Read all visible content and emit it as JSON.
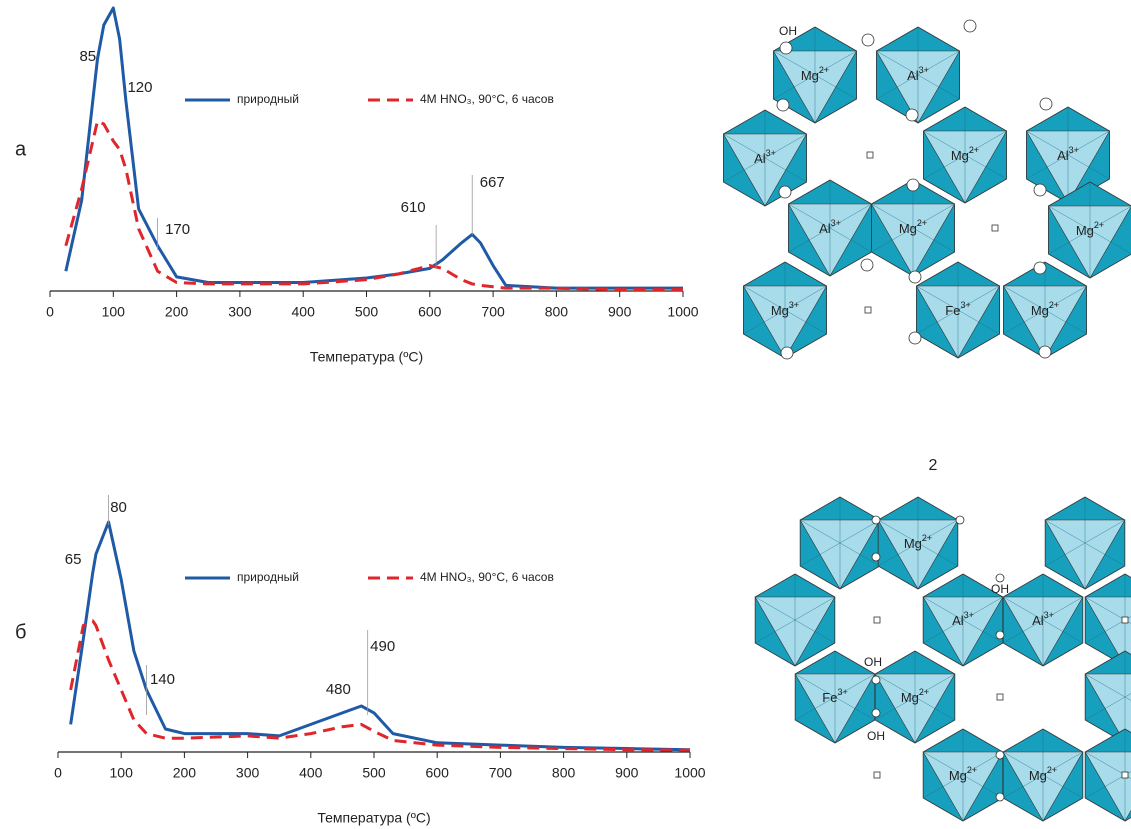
{
  "chart_data": [
    {
      "type": "line",
      "panel_label": "а",
      "xlabel": "Температура (ºС)",
      "xlim": [
        0,
        1000
      ],
      "xticks": [
        0,
        100,
        200,
        300,
        400,
        500,
        600,
        700,
        800,
        900,
        1000
      ],
      "ylim": [
        0,
        100
      ],
      "legend": "top",
      "x": [
        25,
        50,
        75,
        85,
        100,
        110,
        120,
        140,
        170,
        200,
        250,
        300,
        400,
        500,
        550,
        600,
        620,
        650,
        667,
        680,
        700,
        720,
        800,
        900,
        1000
      ],
      "series": [
        {
          "name": "природный",
          "color": "#1f5aa6",
          "dash": "solid",
          "values": [
            7,
            32,
            82,
            94,
            100,
            89,
            67,
            29,
            16,
            5,
            3,
            3,
            3,
            4.6,
            6,
            8,
            11,
            17,
            20,
            17,
            9,
            2,
            1,
            1,
            1
          ]
        },
        {
          "name": "4M HNO₃, 90°C, 6 часов",
          "color": "#e0262b",
          "dash": "dashed",
          "values": [
            16,
            36,
            60,
            59,
            53,
            50,
            43,
            22,
            7,
            3,
            2.5,
            2.5,
            2.5,
            4,
            6,
            9,
            8,
            4,
            2.5,
            2,
            1.5,
            1,
            1,
            0.5,
            0.5
          ]
        }
      ],
      "peak_labels": [
        85,
        120,
        170,
        610,
        667
      ]
    },
    {
      "type": "line",
      "panel_label": "б",
      "xlabel": "Температура (ºС)",
      "xlim": [
        0,
        1000
      ],
      "xticks": [
        0,
        100,
        200,
        300,
        400,
        500,
        600,
        700,
        800,
        900,
        1000
      ],
      "ylim": [
        0,
        100
      ],
      "legend": "top",
      "x": [
        20,
        40,
        55,
        60,
        80,
        100,
        120,
        140,
        170,
        200,
        300,
        350,
        400,
        450,
        480,
        500,
        530,
        600,
        700,
        800,
        900,
        1000
      ],
      "series": [
        {
          "name": "природный",
          "color": "#1f5aa6",
          "dash": "solid",
          "values": [
            12,
            49,
            78,
            86,
            100,
            75,
            44,
            27,
            10,
            8,
            8,
            7,
            12,
            17,
            20,
            17,
            8,
            4,
            3,
            2,
            1.5,
            1
          ]
        },
        {
          "name": "4M HNO₃, 90°C, 6 часов",
          "color": "#e0262b",
          "dash": "dashed",
          "values": [
            27,
            55,
            57,
            55,
            40,
            27,
            14,
            8,
            6,
            6,
            7,
            6,
            8,
            11,
            12,
            9,
            5,
            3,
            2,
            1.5,
            1,
            0.8
          ]
        }
      ],
      "peak_labels": [
        80,
        65,
        140,
        480,
        490
      ]
    }
  ],
  "structures": [
    {
      "oh": [
        "OH"
      ],
      "cations": [
        {
          "element": "Mg",
          "charge": "2+"
        },
        {
          "element": "Al",
          "charge": "3+"
        },
        {
          "element": "Al",
          "charge": "3+"
        },
        {
          "element": "Mg",
          "charge": "2+"
        },
        {
          "element": "Al",
          "charge": "3+"
        },
        {
          "element": "Al",
          "charge": "3+"
        },
        {
          "element": "Mg",
          "charge": "2+"
        },
        {
          "element": "Mg",
          "charge": "2+"
        },
        {
          "element": "Mg",
          "charge": "3+"
        },
        {
          "element": "Fe",
          "charge": "3+"
        },
        {
          "element": "Mg",
          "charge": "2+"
        }
      ]
    },
    {
      "title": "2",
      "oh": [
        "OH",
        "OH",
        "OH"
      ],
      "cations": [
        {
          "element": "Mg",
          "charge": "2+"
        },
        {
          "element": "Al",
          "charge": "3+"
        },
        {
          "element": "Al",
          "charge": "3+"
        },
        {
          "element": "Fe",
          "charge": "3+"
        },
        {
          "element": "Mg",
          "charge": "2+"
        },
        {
          "element": "Mg",
          "charge": "2+"
        },
        {
          "element": "Mg",
          "charge": "2+"
        }
      ]
    }
  ]
}
